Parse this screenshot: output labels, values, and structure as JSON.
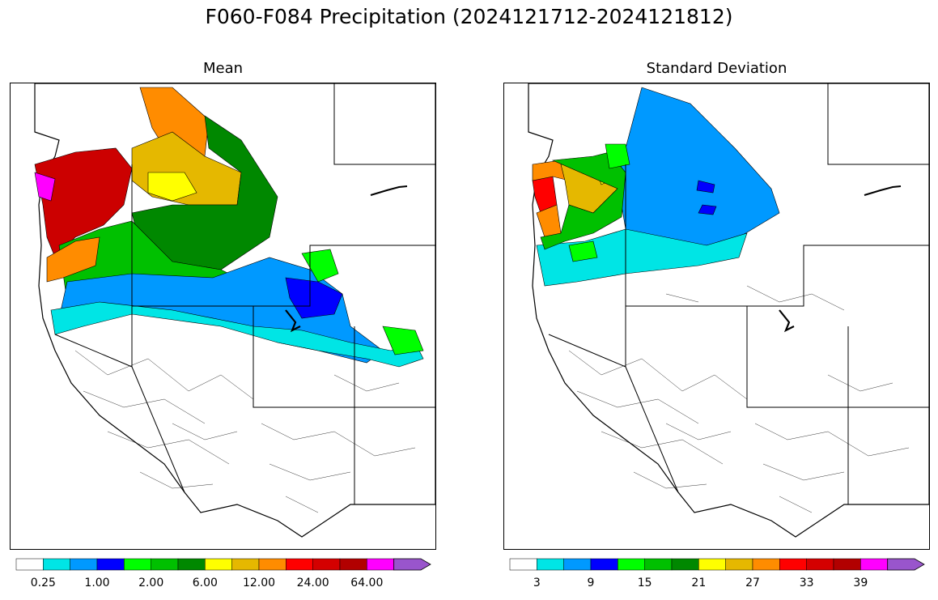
{
  "title": "F060-F084 Precipitation (2024121712-2024121812)",
  "panels": {
    "left": {
      "title": "Mean"
    },
    "right": {
      "title": "Standard Deviation"
    }
  },
  "colorbar_colors": [
    "#ffffff",
    "#00e5e5",
    "#0099ff",
    "#0000ff",
    "#00ff00",
    "#00c000",
    "#008800",
    "#ffff00",
    "#e5b800",
    "#ff8c00",
    "#ff0000",
    "#d40000",
    "#b20000",
    "#ff00ff",
    "#9955cc"
  ],
  "colorbars": {
    "left": {
      "tick_labels": [
        "0.25",
        "1.00",
        "2.00",
        "6.00",
        "12.00",
        "24.00",
        "64.00"
      ]
    },
    "right": {
      "tick_labels": [
        "3",
        "9",
        "15",
        "21",
        "27",
        "33",
        "39"
      ]
    }
  }
}
